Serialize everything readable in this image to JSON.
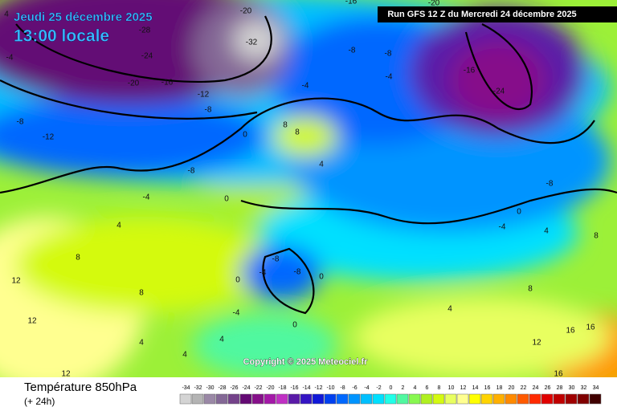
{
  "header": {
    "date": "Jeudi 25 décembre 2025",
    "time": "13:00 locale",
    "run": "Run GFS 12 Z du Mercredi 24 décembre 2025"
  },
  "copyright": "Copyright © 2025 Meteociel.fr",
  "footer": {
    "title": "Température 850hPa",
    "lead": "(+ 24h)"
  },
  "legend": {
    "labels": [
      -34,
      -32,
      -30,
      -28,
      -26,
      -24,
      -22,
      -20,
      -18,
      -16,
      -14,
      -12,
      -10,
      -8,
      -6,
      -4,
      -2,
      0,
      2,
      4,
      6,
      8,
      10,
      12,
      14,
      16,
      18,
      20,
      22,
      24,
      26,
      28,
      30,
      32,
      34
    ],
    "colors": [
      "#d4d4d4",
      "#b4b4b4",
      "#9a88a6",
      "#846896",
      "#74428a",
      "#640a74",
      "#86108a",
      "#a418a8",
      "#c030c4",
      "#5a1aa8",
      "#3414c4",
      "#1018d8",
      "#0040f0",
      "#0068ff",
      "#0094ff",
      "#00c0ff",
      "#00e0ff",
      "#20ffe8",
      "#50f8a0",
      "#88f850",
      "#b0f020",
      "#d4fa10",
      "#e8ff60",
      "#ffff90",
      "#ffff00",
      "#ffd400",
      "#ffb000",
      "#ff8a00",
      "#ff5a00",
      "#ff2a00",
      "#e00000",
      "#c00000",
      "#a00000",
      "#800000",
      "#400000"
    ]
  },
  "contour_labels": [
    "-28",
    "-24",
    "-20",
    "-16",
    "-32",
    "-20",
    "-12",
    "-8",
    "-8",
    "-12",
    "-4",
    "4",
    "-8",
    "-4",
    "0",
    "4",
    "8",
    "12",
    "12",
    "8",
    "4",
    "-8",
    "-8",
    "-4",
    "0",
    "0",
    "-4",
    "0",
    "8",
    "8",
    "4",
    "-8",
    "-8",
    "-4",
    "-16",
    "-24",
    "-20",
    "-16",
    "-8",
    "-4",
    "0",
    "4",
    "8",
    "4",
    "8",
    "12",
    "16",
    "16",
    "16",
    "12",
    "4",
    "4",
    "0",
    "-4"
  ]
}
